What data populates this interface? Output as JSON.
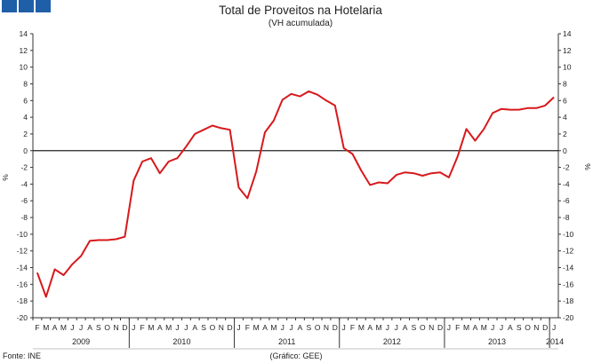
{
  "header": {
    "logo_color": "#1f5fa8"
  },
  "chart_data": {
    "type": "line",
    "title": "Total de Proveitos na Hotelaria",
    "subtitle": "(VH acumulada)",
    "ylabel_left": "%",
    "ylabel_right": "%",
    "ylim": [
      -20,
      14
    ],
    "yticks": [
      14,
      12,
      10,
      8,
      6,
      4,
      2,
      0,
      -2,
      -4,
      -6,
      -8,
      -10,
      -12,
      -14,
      -16,
      -18,
      -20
    ],
    "grid": false,
    "months": [
      "F",
      "M",
      "A",
      "M",
      "J",
      "J",
      "A",
      "S",
      "O",
      "N",
      "D",
      "J",
      "F",
      "M",
      "A",
      "M",
      "J",
      "J",
      "A",
      "S",
      "O",
      "N",
      "D",
      "J",
      "F",
      "M",
      "A",
      "M",
      "J",
      "J",
      "A",
      "S",
      "O",
      "N",
      "D",
      "J",
      "F",
      "M",
      "A",
      "M",
      "J",
      "J",
      "A",
      "S",
      "O",
      "N",
      "D",
      "J",
      "F",
      "M",
      "A",
      "M",
      "J",
      "J",
      "A",
      "S",
      "O",
      "N",
      "D",
      "J"
    ],
    "years": [
      {
        "label": "2009",
        "start": 0,
        "end": 10
      },
      {
        "label": "2010",
        "start": 11,
        "end": 22
      },
      {
        "label": "2011",
        "start": 23,
        "end": 34
      },
      {
        "label": "2012",
        "start": 35,
        "end": 46
      },
      {
        "label": "2013",
        "start": 47,
        "end": 58
      },
      {
        "label": "2014",
        "start": 59,
        "end": 59
      }
    ],
    "series": [
      {
        "color": "#d7191c",
        "values": [
          -14.6,
          -17.5,
          -14.2,
          -14.9,
          -13.6,
          -12.6,
          -10.8,
          -10.7,
          -10.7,
          -10.6,
          -10.3,
          -3.6,
          -1.3,
          -0.9,
          -2.7,
          -1.3,
          -0.9,
          0.5,
          2.0,
          2.5,
          3.0,
          2.7,
          2.5,
          -4.4,
          -5.7,
          -2.5,
          2.2,
          3.6,
          6.1,
          6.8,
          6.5,
          7.1,
          6.7,
          6.0,
          5.4,
          0.3,
          -0.4,
          -2.4,
          -4.1,
          -3.8,
          -3.9,
          -2.9,
          -2.6,
          -2.7,
          -3.0,
          -2.7,
          -2.6,
          -3.2,
          -0.7,
          2.6,
          1.2,
          2.6,
          4.5,
          5.0,
          4.9,
          4.9,
          5.1,
          5.1,
          5.4,
          6.4
        ]
      }
    ]
  },
  "footer": {
    "source": "Fonte: INE",
    "credit": "(Gráfico: GEE)"
  }
}
